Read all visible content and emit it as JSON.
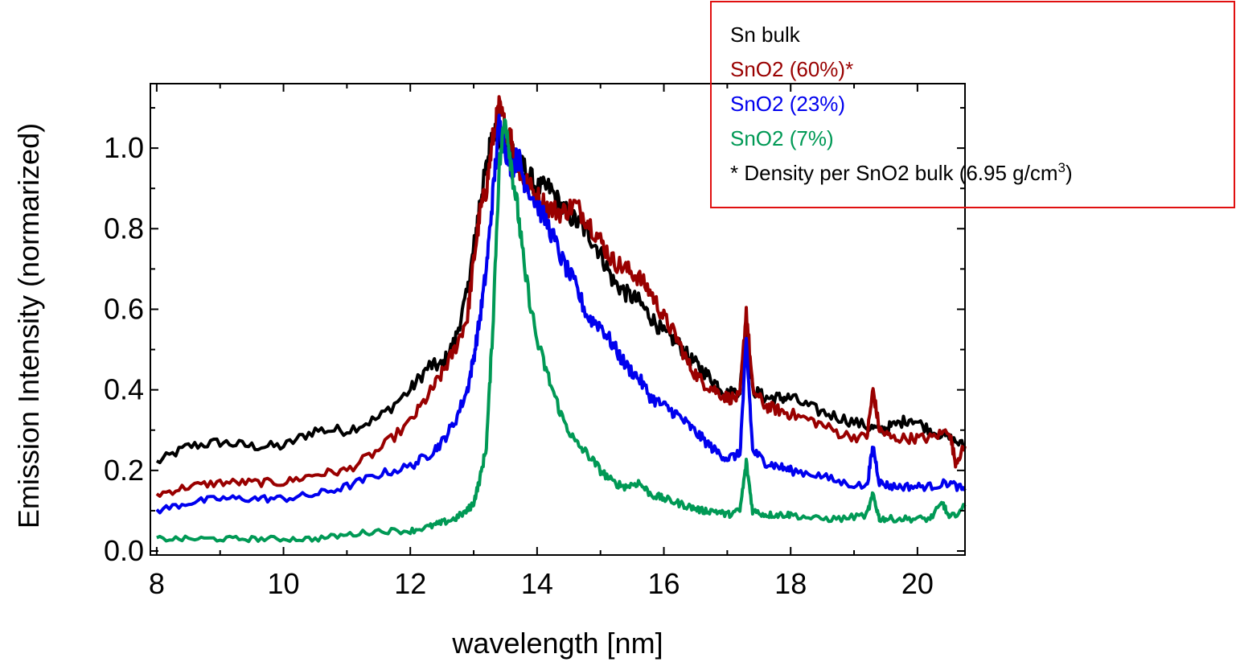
{
  "chart_data": {
    "type": "line",
    "title": "",
    "xlabel": "wavelength [nm]",
    "ylabel": "Emission Intensity (normarized)",
    "xlim": [
      7.9,
      20.75
    ],
    "ylim": [
      -0.01,
      1.16
    ],
    "x_ticks": [
      8,
      10,
      12,
      14,
      16,
      18,
      20
    ],
    "x_tick_labels": [
      "8",
      "10",
      "12",
      "14",
      "16",
      "18",
      "20"
    ],
    "y_ticks": [
      0.0,
      0.2,
      0.4,
      0.6,
      0.8,
      1.0
    ],
    "y_tick_labels": [
      "0.0",
      "0.2",
      "0.4",
      "0.6",
      "0.8",
      "1.0"
    ],
    "grid": false,
    "legend_position": "top-right",
    "legend_entries": [
      {
        "label": "Sn bulk",
        "color": "#000000"
      },
      {
        "label": "SnO2 (60%)*",
        "color": "#990000"
      },
      {
        "label": "SnO2 (23%)",
        "color": "#0000ee"
      },
      {
        "label": "SnO2 (7%)",
        "color": "#009955"
      }
    ],
    "legend_note": "* Density per SnO2 bulk (6.95 g/cm",
    "legend_note_sup": "3",
    "legend_note_close": ")",
    "legend_border_color": "#e01010",
    "series": [
      {
        "name": "Sn bulk",
        "color": "#000000",
        "x": [
          8.0,
          8.5,
          9.0,
          9.5,
          10.0,
          10.5,
          11.0,
          11.5,
          12.0,
          12.3,
          12.5,
          12.7,
          12.9,
          13.0,
          13.1,
          13.2,
          13.3,
          13.4,
          13.5,
          13.6,
          13.7,
          13.8,
          14.0,
          14.2,
          14.4,
          14.6,
          14.8,
          15.0,
          15.2,
          15.4,
          15.6,
          15.8,
          16.0,
          16.2,
          16.4,
          16.6,
          16.8,
          17.0,
          17.2,
          17.3,
          17.4,
          17.6,
          17.8,
          18.0,
          18.4,
          18.8,
          19.2,
          19.4,
          19.6,
          19.9,
          20.2,
          20.5,
          20.75
        ],
        "y": [
          0.22,
          0.26,
          0.27,
          0.26,
          0.26,
          0.3,
          0.3,
          0.33,
          0.4,
          0.46,
          0.46,
          0.52,
          0.64,
          0.75,
          0.87,
          0.95,
          1.05,
          1.03,
          1.0,
          1.0,
          0.96,
          0.95,
          0.9,
          0.9,
          0.85,
          0.82,
          0.79,
          0.74,
          0.67,
          0.64,
          0.62,
          0.58,
          0.54,
          0.52,
          0.48,
          0.45,
          0.42,
          0.39,
          0.4,
          0.55,
          0.4,
          0.38,
          0.38,
          0.38,
          0.35,
          0.33,
          0.31,
          0.3,
          0.31,
          0.33,
          0.3,
          0.28,
          0.26
        ]
      },
      {
        "name": "SnO2 (60%)*",
        "color": "#990000",
        "x": [
          8.0,
          8.5,
          9.0,
          9.5,
          10.0,
          10.5,
          11.0,
          11.5,
          12.0,
          12.3,
          12.5,
          12.7,
          12.9,
          13.0,
          13.1,
          13.2,
          13.3,
          13.4,
          13.5,
          13.6,
          13.7,
          13.8,
          14.0,
          14.2,
          14.4,
          14.6,
          14.8,
          15.0,
          15.2,
          15.4,
          15.6,
          15.8,
          16.0,
          16.2,
          16.4,
          16.6,
          16.8,
          17.0,
          17.2,
          17.3,
          17.4,
          17.6,
          17.8,
          18.0,
          18.4,
          18.8,
          19.2,
          19.3,
          19.4,
          19.6,
          19.9,
          20.2,
          20.5,
          20.6,
          20.75
        ],
        "y": [
          0.14,
          0.16,
          0.17,
          0.17,
          0.17,
          0.19,
          0.2,
          0.25,
          0.32,
          0.39,
          0.44,
          0.5,
          0.58,
          0.72,
          0.84,
          0.9,
          1.02,
          1.1,
          1.05,
          1.02,
          0.95,
          0.92,
          0.88,
          0.85,
          0.84,
          0.86,
          0.82,
          0.77,
          0.72,
          0.7,
          0.68,
          0.64,
          0.58,
          0.53,
          0.46,
          0.42,
          0.4,
          0.38,
          0.38,
          0.6,
          0.4,
          0.36,
          0.35,
          0.34,
          0.32,
          0.29,
          0.28,
          0.4,
          0.3,
          0.28,
          0.28,
          0.28,
          0.3,
          0.22,
          0.26
        ]
      },
      {
        "name": "SnO2 (23%)",
        "color": "#0000ee",
        "x": [
          8.0,
          8.5,
          9.0,
          9.5,
          10.0,
          10.5,
          11.0,
          11.5,
          12.0,
          12.3,
          12.5,
          12.7,
          12.9,
          13.0,
          13.1,
          13.2,
          13.3,
          13.4,
          13.5,
          13.6,
          13.7,
          13.8,
          14.0,
          14.2,
          14.4,
          14.6,
          14.8,
          15.0,
          15.2,
          15.4,
          15.6,
          15.8,
          16.0,
          16.2,
          16.4,
          16.6,
          16.8,
          17.0,
          17.2,
          17.3,
          17.4,
          17.6,
          17.8,
          18.0,
          18.4,
          18.8,
          19.2,
          19.3,
          19.4,
          19.6,
          19.9,
          20.2,
          20.5,
          20.75
        ],
        "y": [
          0.1,
          0.12,
          0.13,
          0.13,
          0.13,
          0.14,
          0.16,
          0.19,
          0.21,
          0.24,
          0.27,
          0.32,
          0.4,
          0.48,
          0.58,
          0.7,
          0.88,
          1.06,
          1.0,
          0.95,
          0.98,
          0.92,
          0.86,
          0.8,
          0.72,
          0.66,
          0.58,
          0.56,
          0.51,
          0.46,
          0.43,
          0.38,
          0.36,
          0.34,
          0.31,
          0.28,
          0.25,
          0.23,
          0.24,
          0.52,
          0.25,
          0.22,
          0.21,
          0.2,
          0.19,
          0.17,
          0.16,
          0.26,
          0.17,
          0.16,
          0.16,
          0.16,
          0.17,
          0.15
        ]
      },
      {
        "name": "SnO2 (7%)",
        "color": "#009955",
        "x": [
          8.0,
          8.5,
          9.0,
          9.5,
          10.0,
          10.5,
          11.0,
          11.5,
          12.0,
          12.3,
          12.5,
          12.7,
          12.9,
          13.0,
          13.1,
          13.2,
          13.3,
          13.4,
          13.5,
          13.6,
          13.7,
          13.8,
          14.0,
          14.2,
          14.4,
          14.6,
          14.8,
          15.0,
          15.2,
          15.4,
          15.6,
          15.8,
          16.0,
          16.2,
          16.4,
          16.6,
          16.8,
          17.0,
          17.2,
          17.3,
          17.4,
          17.6,
          17.8,
          18.0,
          18.4,
          18.8,
          19.2,
          19.3,
          19.4,
          19.6,
          19.9,
          20.2,
          20.4,
          20.5,
          20.75
        ],
        "y": [
          0.03,
          0.03,
          0.03,
          0.03,
          0.03,
          0.03,
          0.04,
          0.05,
          0.05,
          0.06,
          0.07,
          0.08,
          0.1,
          0.12,
          0.18,
          0.26,
          0.55,
          0.95,
          1.08,
          0.95,
          0.84,
          0.7,
          0.52,
          0.42,
          0.33,
          0.27,
          0.24,
          0.2,
          0.17,
          0.16,
          0.17,
          0.14,
          0.13,
          0.12,
          0.11,
          0.1,
          0.1,
          0.09,
          0.1,
          0.22,
          0.1,
          0.09,
          0.09,
          0.09,
          0.08,
          0.08,
          0.09,
          0.14,
          0.08,
          0.08,
          0.08,
          0.08,
          0.12,
          0.08,
          0.11
        ]
      }
    ]
  }
}
